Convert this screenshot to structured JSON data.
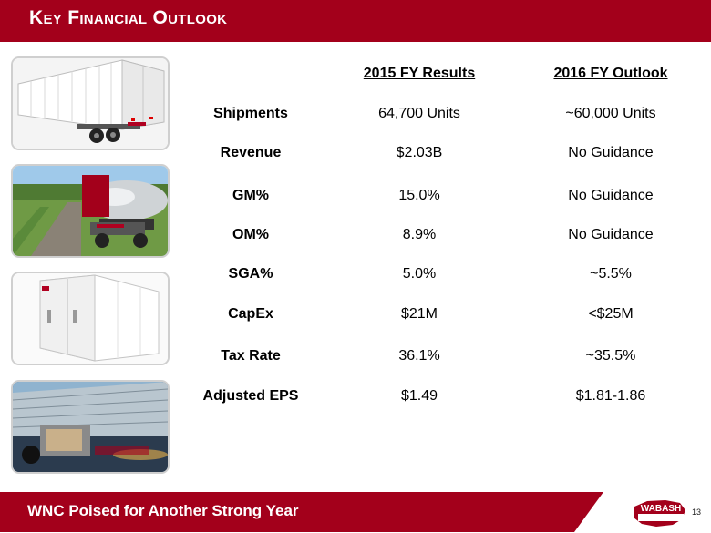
{
  "header": {
    "title": "Key Financial Outlook"
  },
  "table": {
    "columns": {
      "col_2015": "2015 FY Results",
      "col_2016": "2016 FY Outlook"
    },
    "rows": [
      {
        "label": "Shipments",
        "y2015": "64,700 Units",
        "y2016": "~60,000 Units"
      },
      {
        "label": "Revenue",
        "y2015": "$2.03B",
        "y2016": "No Guidance"
      },
      {
        "label": "GM%",
        "y2015": "15.0%",
        "y2016": "No Guidance"
      },
      {
        "label": "OM%",
        "y2015": "8.9%",
        "y2016": "No Guidance"
      },
      {
        "label": "SGA%",
        "y2015": "5.0%",
        "y2016": "~5.5%"
      },
      {
        "label": "CapEx",
        "y2015": "$21M",
        "y2016": "<$25M"
      },
      {
        "label": "Tax Rate",
        "y2015": "36.1%",
        "y2016": "~35.5%"
      },
      {
        "label": "Adjusted EPS",
        "y2015": "$1.49",
        "y2016": "$1.81-1.86"
      }
    ]
  },
  "footer": {
    "tagline": "WNC Poised for Another Strong Year",
    "page_number": "13"
  },
  "logo": {
    "text": "WABASH"
  },
  "colors": {
    "brand_red": "#a3001b",
    "white": "#ffffff"
  },
  "images": [
    {
      "icon": "dry-van-trailer-icon"
    },
    {
      "icon": "tank-trailer-icon"
    },
    {
      "icon": "truck-body-icon"
    },
    {
      "icon": "trailer-highway-icon"
    }
  ]
}
